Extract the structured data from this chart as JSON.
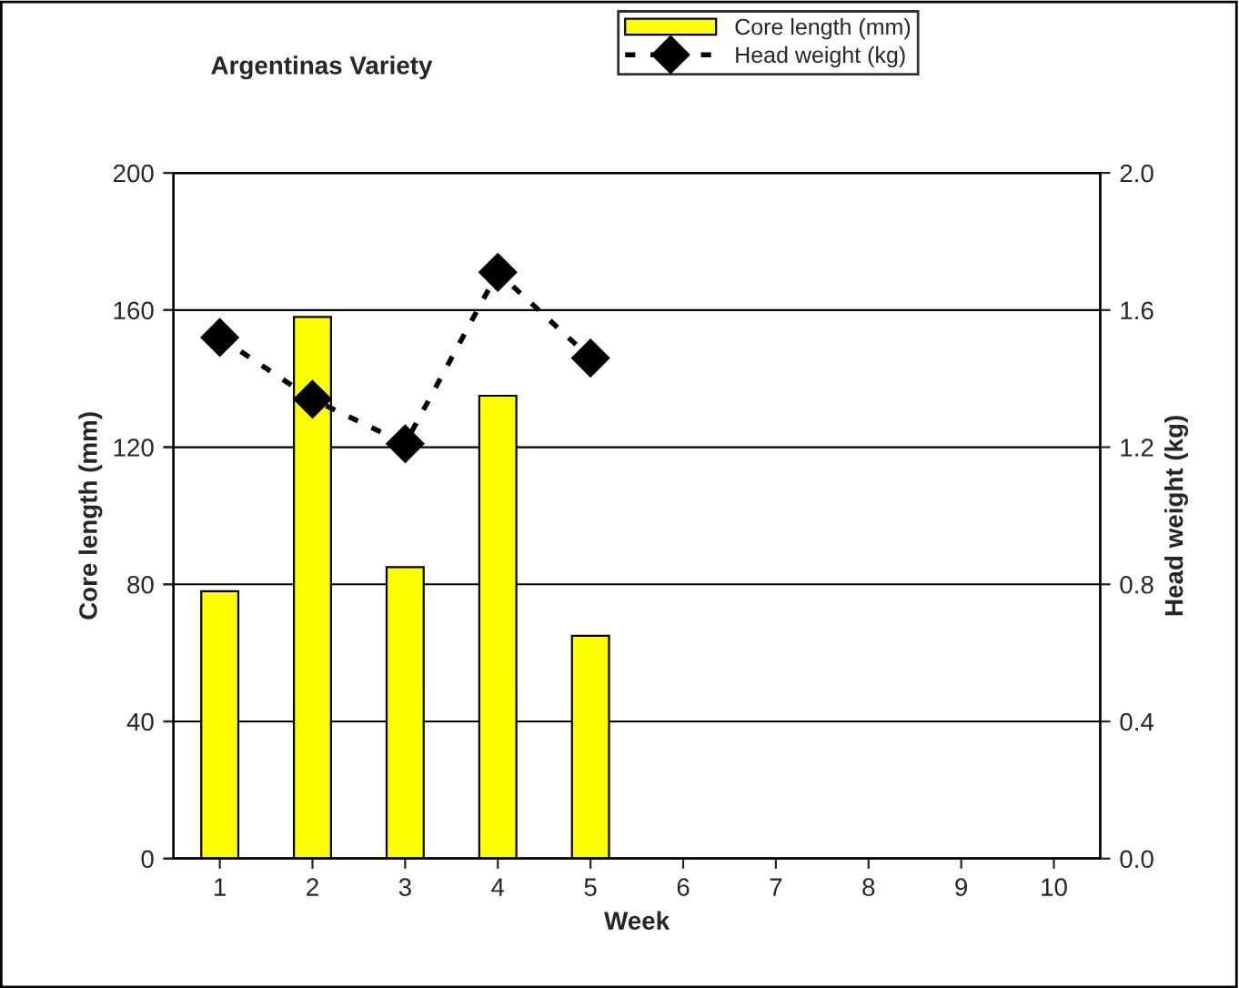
{
  "chart_data": {
    "type": "bar",
    "title": "Argentinas Variety",
    "xlabel": "Week",
    "ylabel": "Core length (mm)",
    "y2label": "Head weight (kg)",
    "categories": [
      "1",
      "2",
      "3",
      "4",
      "5",
      "6",
      "7",
      "8",
      "9",
      "10"
    ],
    "series": [
      {
        "name": "Core length (mm)",
        "color": "#ffff00",
        "values": [
          78,
          158,
          85,
          135,
          65,
          null,
          null,
          null,
          null,
          null
        ]
      },
      {
        "name": "Head weight (kg)",
        "type": "line",
        "axis": "y2",
        "color": "#000000",
        "marker": "diamond",
        "line_style": "dotted",
        "values": [
          1.52,
          1.34,
          1.21,
          1.71,
          1.46,
          null,
          null,
          null,
          null,
          null
        ]
      }
    ],
    "ylim": [
      0,
      200
    ],
    "yticks": [
      0,
      40,
      80,
      120,
      160,
      200
    ],
    "y2lim": [
      0,
      2
    ],
    "y2ticks": [
      {
        "value": 0,
        "label": "0.0"
      },
      {
        "value": 0.4,
        "label": "0.4"
      },
      {
        "value": 0.8,
        "label": "0.8"
      },
      {
        "value": 1.2,
        "label": "1.2"
      },
      {
        "value": 1.6,
        "label": "1.6"
      },
      {
        "value": 2,
        "label": "2.0"
      }
    ],
    "grid": "y",
    "legend": "top"
  }
}
